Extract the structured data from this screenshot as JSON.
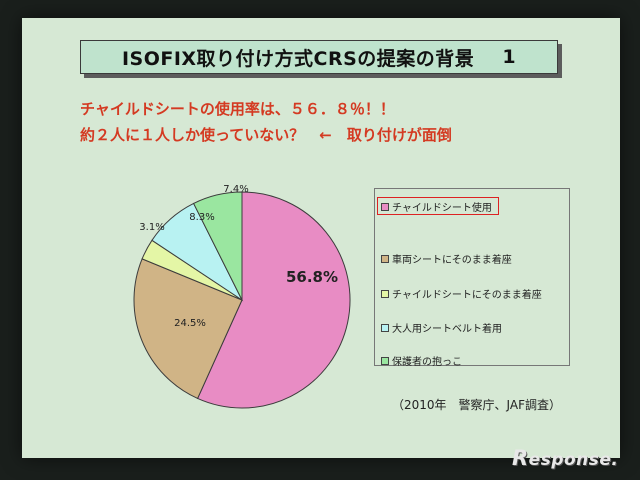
{
  "slide": {
    "title": "ISOFIX取り付け方式CRSの提案の背景",
    "title_number": "1",
    "headline_1": "チャイルドシートの使用率は、５６．８％！！",
    "headline_2": "約２人に１人しか使っていない？　←　取り付けが面倒",
    "source": "（2010年　警察庁、JAF調査）",
    "watermark_initial": "R",
    "watermark_text": "esponse."
  },
  "chart_data": {
    "type": "pie",
    "slices": [
      {
        "label": "チャイルドシート使用",
        "value": 56.8,
        "value_label": "56.8%",
        "color": "#e88cc4"
      },
      {
        "label": "車両シートにそのまま着座",
        "value": 24.5,
        "value_label": "24.5%",
        "color": "#d0b486"
      },
      {
        "label": "チャイルドシートにそのまま着座",
        "value": 3.1,
        "value_label": "3.1%",
        "color": "#e4f6a6"
      },
      {
        "label": "大人用シートベルト着用",
        "value": 8.3,
        "value_label": "8.3%",
        "color": "#b8f2f2"
      },
      {
        "label": "保護者の抱っこ",
        "value": 7.4,
        "value_label": "7.4%",
        "color": "#9ae6a0"
      }
    ],
    "start": "top",
    "direction": "clockwise",
    "legend_placement": "right",
    "highlighted_legend_item": "チャイルドシート使用"
  }
}
